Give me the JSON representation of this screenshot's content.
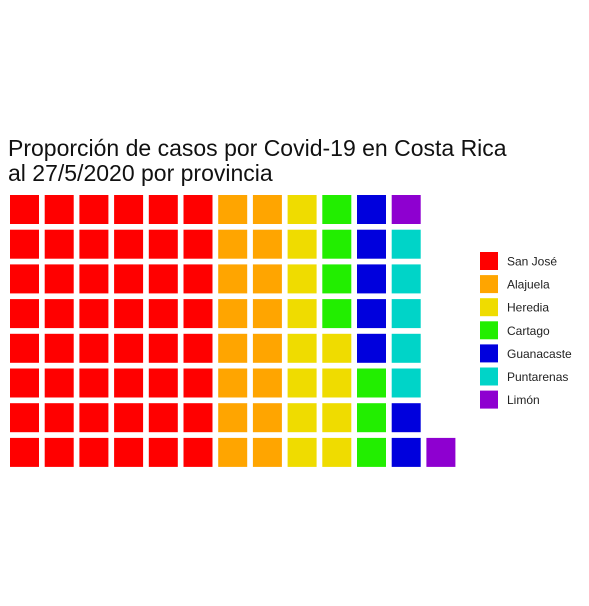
{
  "chart_data": {
    "type": "waffle",
    "title_lines": [
      "Proporción de casos por Covid-19 en Costa Rica",
      "al 27/5/2020 por provincia"
    ],
    "fill_order": "column-major, bottom to top, left to right",
    "rows": 8,
    "legend_position": "right",
    "series": [
      {
        "name": "San José",
        "value": 48,
        "color": "#FF0000"
      },
      {
        "name": "Alajuela",
        "value": 16,
        "color": "#FFA500"
      },
      {
        "name": "Heredia",
        "value": 12,
        "color": "#EFDC00"
      },
      {
        "name": "Cartago",
        "value": 7,
        "color": "#22EE00"
      },
      {
        "name": "Guanacaste",
        "value": 7,
        "color": "#0000DD"
      },
      {
        "name": "Puntarenas",
        "value": 5,
        "color": "#00D4C8"
      },
      {
        "name": "Limón",
        "value": 2,
        "color": "#8E00D0"
      }
    ]
  }
}
